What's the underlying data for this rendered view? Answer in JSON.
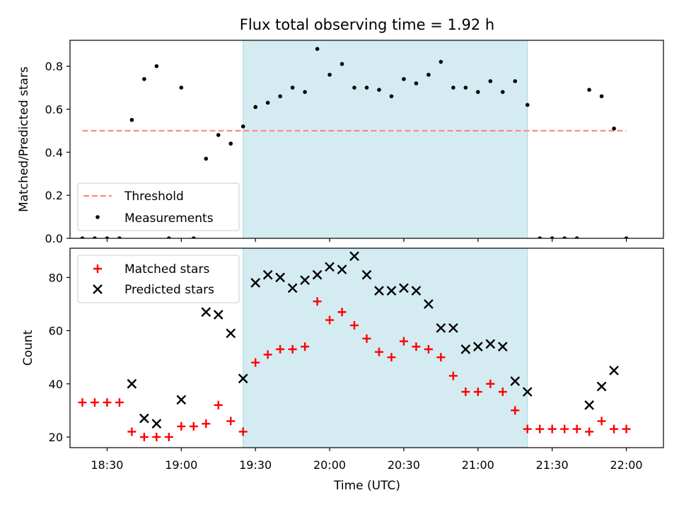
{
  "title": "Flux total observing time = 1.92 h",
  "chart_data": [
    {
      "type": "scatter",
      "ylabel": "Matched/Predicted stars",
      "ylim": [
        0,
        0.92
      ],
      "y_ticks": [
        "0.0",
        "0.2",
        "0.4",
        "0.6",
        "0.8"
      ],
      "y_tick_values": [
        0,
        0.2,
        0.4,
        0.6,
        0.8
      ],
      "x_range": [
        "18:15",
        "22:15"
      ],
      "shaded_interval": [
        "19:25",
        "21:20"
      ],
      "shaded_color": "#d4ebf2",
      "threshold": {
        "name": "Threshold",
        "y": 0.5,
        "x_start": "18:20",
        "x_end": "22:00",
        "color": "#ff7f7f"
      },
      "legend": {
        "position": "lower-left",
        "entries": [
          "Threshold",
          "Measurements"
        ]
      },
      "series": [
        {
          "name": "Measurements",
          "color": "#000000",
          "x": [
            "18:20",
            "18:25",
            "18:30",
            "18:35",
            "18:40",
            "18:45",
            "18:50",
            "18:55",
            "19:00",
            "19:05",
            "19:10",
            "19:15",
            "19:20",
            "19:25",
            "19:30",
            "19:35",
            "19:40",
            "19:45",
            "19:50",
            "19:55",
            "20:00",
            "20:05",
            "20:10",
            "20:15",
            "20:20",
            "20:25",
            "20:30",
            "20:35",
            "20:40",
            "20:45",
            "20:50",
            "20:55",
            "21:00",
            "21:05",
            "21:10",
            "21:15",
            "21:20",
            "21:25",
            "21:30",
            "21:35",
            "21:40",
            "21:45",
            "21:50",
            "21:55",
            "22:00"
          ],
          "y": [
            0,
            0,
            0,
            0,
            0.55,
            0.74,
            0.8,
            0,
            0.7,
            0,
            0.37,
            0.48,
            0.44,
            0.52,
            0.61,
            0.63,
            0.66,
            0.7,
            0.68,
            0.88,
            0.76,
            0.81,
            0.7,
            0.7,
            0.69,
            0.66,
            0.74,
            0.72,
            0.76,
            0.82,
            0.7,
            0.7,
            0.68,
            0.73,
            0.68,
            0.73,
            0.62,
            0,
            0,
            0,
            0,
            0.69,
            0.66,
            0.51,
            0
          ]
        }
      ]
    },
    {
      "type": "scatter",
      "ylabel": "Count",
      "xlabel": "Time (UTC)",
      "ylim": [
        16,
        91
      ],
      "y_ticks": [
        "20",
        "40",
        "60",
        "80"
      ],
      "y_tick_values": [
        20,
        40,
        60,
        80
      ],
      "x_ticks": [
        "18:30",
        "19:00",
        "19:30",
        "20:00",
        "20:30",
        "21:00",
        "21:30",
        "22:00"
      ],
      "x_range": [
        "18:15",
        "22:15"
      ],
      "shaded_interval": [
        "19:25",
        "21:20"
      ],
      "shaded_color": "#d4ebf2",
      "legend": {
        "position": "top-left",
        "entries": [
          "Matched stars",
          "Predicted stars"
        ]
      },
      "series": [
        {
          "name": "Matched stars",
          "marker": "plus",
          "color": "#ff0000",
          "x": [
            "18:20",
            "18:25",
            "18:30",
            "18:35",
            "18:40",
            "18:45",
            "18:50",
            "18:55",
            "19:00",
            "19:05",
            "19:10",
            "19:15",
            "19:20",
            "19:25",
            "19:30",
            "19:35",
            "19:40",
            "19:45",
            "19:50",
            "19:55",
            "20:00",
            "20:05",
            "20:10",
            "20:15",
            "20:20",
            "20:25",
            "20:30",
            "20:35",
            "20:40",
            "20:45",
            "20:50",
            "20:55",
            "21:00",
            "21:05",
            "21:10",
            "21:15",
            "21:20",
            "21:25",
            "21:30",
            "21:35",
            "21:40",
            "21:45",
            "21:50",
            "21:55",
            "22:00"
          ],
          "y": [
            33,
            33,
            33,
            33,
            22,
            20,
            20,
            20,
            24,
            24,
            25,
            32,
            26,
            22,
            48,
            51,
            53,
            53,
            54,
            71,
            64,
            67,
            62,
            57,
            52,
            50,
            56,
            54,
            53,
            50,
            43,
            37,
            37,
            40,
            37,
            30,
            23,
            23,
            23,
            23,
            23,
            22,
            26,
            23,
            23
          ]
        },
        {
          "name": "Predicted stars",
          "marker": "x",
          "color": "#000000",
          "x": [
            "18:40",
            "18:45",
            "18:50",
            "19:00",
            "19:10",
            "19:15",
            "19:20",
            "19:25",
            "19:30",
            "19:35",
            "19:40",
            "19:45",
            "19:50",
            "19:55",
            "20:00",
            "20:05",
            "20:10",
            "20:15",
            "20:20",
            "20:25",
            "20:30",
            "20:35",
            "20:40",
            "20:45",
            "20:50",
            "20:55",
            "21:00",
            "21:05",
            "21:10",
            "21:15",
            "21:20",
            "21:45",
            "21:50",
            "21:55"
          ],
          "y": [
            40,
            27,
            25,
            34,
            67,
            66,
            59,
            42,
            78,
            81,
            80,
            76,
            79,
            81,
            84,
            83,
            88,
            81,
            75,
            75,
            76,
            75,
            70,
            61,
            61,
            53,
            54,
            55,
            54,
            41,
            37,
            32,
            39,
            45
          ]
        }
      ]
    }
  ]
}
